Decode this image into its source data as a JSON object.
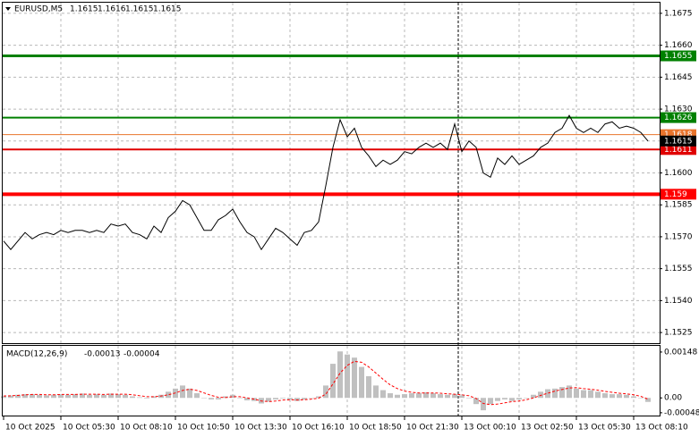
{
  "chart_data": [
    {
      "type": "line",
      "symbol": "EURUSD,M5",
      "ohlc": [
        1.1615,
        1.1616,
        1.1615,
        1.1615
      ],
      "color": "#000000",
      "categories": [
        "10 Oct 2025",
        null,
        null,
        null,
        null,
        null,
        null,
        null,
        "10 Oct 05:30",
        null,
        null,
        null,
        null,
        null,
        null,
        null,
        "10 Oct 08:10",
        null,
        null,
        null,
        null,
        null,
        null,
        null,
        "10 Oct 10:50",
        null,
        null,
        null,
        null,
        null,
        null,
        null,
        "10 Oct 13:30",
        null,
        null,
        null,
        null,
        null,
        null,
        null,
        "10 Oct 16:10",
        null,
        null,
        null,
        null,
        null,
        null,
        null,
        "10 Oct 18:50",
        null,
        null,
        null,
        null,
        null,
        null,
        null,
        "10 Oct 21:30",
        null,
        null,
        null,
        null,
        null,
        null,
        null,
        "13 Oct 00:10",
        null,
        null,
        null,
        null,
        null,
        null,
        null,
        "13 Oct 02:50",
        null,
        null,
        null,
        null,
        null,
        null,
        null,
        "13 Oct 05:30",
        null,
        null,
        null,
        null,
        null,
        null,
        null,
        "13 Oct 08:10",
        null,
        null
      ],
      "values": [
        1.1568,
        1.1564,
        1.1568,
        1.1572,
        1.1569,
        1.1571,
        1.1572,
        1.1571,
        1.1573,
        1.1572,
        1.1573,
        1.1573,
        1.1572,
        1.1573,
        1.1572,
        1.1576,
        1.1575,
        1.1576,
        1.1572,
        1.1571,
        1.1569,
        1.1575,
        1.1572,
        1.1579,
        1.1582,
        1.1587,
        1.1585,
        1.1579,
        1.1573,
        1.1573,
        1.1578,
        1.158,
        1.1583,
        1.1577,
        1.1572,
        1.157,
        1.1564,
        1.1569,
        1.1574,
        1.1572,
        1.1569,
        1.1566,
        1.1572,
        1.1573,
        1.1577,
        1.1594,
        1.1612,
        1.1625,
        1.1617,
        1.1621,
        1.1612,
        1.1608,
        1.1603,
        1.1606,
        1.1604,
        1.1606,
        1.161,
        1.1609,
        1.1612,
        1.1614,
        1.1612,
        1.1614,
        1.1611,
        1.1623,
        1.161,
        1.1615,
        1.1612,
        1.16,
        1.1598,
        1.1607,
        1.1604,
        1.1608,
        1.1604,
        1.1606,
        1.1608,
        1.1612,
        1.1614,
        1.1619,
        1.1621,
        1.1627,
        1.1621,
        1.1619,
        1.1621,
        1.1619,
        1.1623,
        1.1624,
        1.1621,
        1.1622,
        1.1621,
        1.1619,
        1.1615
      ],
      "ylim": [
        1.152,
        1.168
      ],
      "yticks": [
        1.1675,
        {
          "value": 1.166,
          "label": "1.1660"
        },
        1.1645,
        {
          "value": 1.163,
          "label": "1.1630"
        },
        1.1615,
        {
          "value": 1.16,
          "label": "1.1600"
        },
        1.1585,
        {
          "value": 1.157,
          "label": "1.1570"
        },
        1.1555,
        {
          "value": 1.154,
          "label": "1.1540"
        },
        1.1525
      ],
      "grid": true,
      "levels": [
        {
          "value": 1.1655,
          "color": "#008000"
        },
        {
          "value": 1.1626,
          "color": "#008000"
        },
        {
          "value": 1.1618,
          "color": "#e8742c"
        },
        {
          "value": 1.1611,
          "color": "#e00000"
        },
        {
          "value": 1.159,
          "color": "#ff0000"
        }
      ]
    },
    {
      "type": "macd",
      "title": "MACD(12,26,9)",
      "series": [
        {
          "color": "#c0c0c0",
          "values": [
            5e-05,
            8e-05,
            0.0001,
            0.00012,
            0.00012,
            0.0001,
            8e-05,
            0.0001,
            0.00012,
            0.0001,
            0.00012,
            0.00014,
            0.0001,
            0.00012,
            0.0001,
            0.00014,
            0.00012,
            0.0001,
            5e-05,
            2e-05,
            -2e-05,
            5e-05,
            0.0001,
            0.0002,
            0.0003,
            0.0004,
            0.0003,
            0.00015,
            0,
            -5e-05,
            -5e-05,
            5e-05,
            0.0001,
            0,
            -8e-05,
            -0.0001,
            -0.00018,
            -0.00012,
            -5e-05,
            -2e-05,
            -5e-05,
            -0.0001,
            -5e-05,
            0,
            5e-05,
            0.0004,
            0.0011,
            0.0015,
            0.0014,
            0.0013,
            0.001,
            0.0007,
            0.0004,
            0.00025,
            0.00015,
            0.0001,
            0.00012,
            0.00015,
            0.00015,
            0.00018,
            0.00015,
            0.00012,
            0.0001,
            0.00012,
            8e-05,
            0,
            -0.0002,
            -0.0004,
            -0.0002,
            -0.0001,
            -5e-05,
            -0.0001,
            -5e-05,
            0,
            0.0001,
            0.0002,
            0.00028,
            0.0003,
            0.00035,
            0.0004,
            0.0003,
            0.00025,
            0.00025,
            0.0002,
            0.00015,
            0.00012,
            0.00012,
            0.0001,
            5e-05,
            0,
            -0.00013
          ]
        },
        {
          "color": "#ff0000",
          "values": [
            6e-05,
            7e-05,
            8e-05,
            0.0001,
            0.00011,
            0.00011,
            0.0001,
            0.0001,
            0.00011,
            0.00011,
            0.00011,
            0.00012,
            0.00012,
            0.00012,
            0.00011,
            0.00012,
            0.00012,
            0.00012,
            0.0001,
            7e-05,
            4e-05,
            4e-05,
            6e-05,
            0.0001,
            0.00016,
            0.00024,
            0.00028,
            0.00024,
            0.00016,
            8e-05,
            2e-05,
            1e-05,
            4e-05,
            4e-05,
            0,
            -4e-05,
            -0.0001,
            -0.00012,
            -0.0001,
            -7e-05,
            -6e-05,
            -7e-05,
            -6e-05,
            -4e-05,
            -1e-05,
            0.00012,
            0.00045,
            0.0008,
            0.00105,
            0.00118,
            0.00115,
            0.001,
            0.0008,
            0.0006,
            0.00042,
            0.0003,
            0.00022,
            0.00018,
            0.00016,
            0.00016,
            0.00016,
            0.00015,
            0.00013,
            0.00012,
            0.0001,
            7e-05,
            -2e-05,
            -0.00018,
            -0.00022,
            -0.0002,
            -0.00016,
            -0.00012,
            -0.0001,
            -6e-05,
            0,
            8e-05,
            0.00015,
            0.00022,
            0.00027,
            0.00032,
            0.00033,
            0.0003,
            0.00028,
            0.00025,
            0.00021,
            0.00018,
            0.00015,
            0.00013,
            0.0001,
            5e-05,
            -4e-05
          ]
        }
      ],
      "ylim": [
        -0.00057,
        0.00168
      ],
      "yticks": [
        0.00148,
        {
          "value": 0,
          "label": "0.00"
        },
        -0.00048
      ]
    }
  ]
}
